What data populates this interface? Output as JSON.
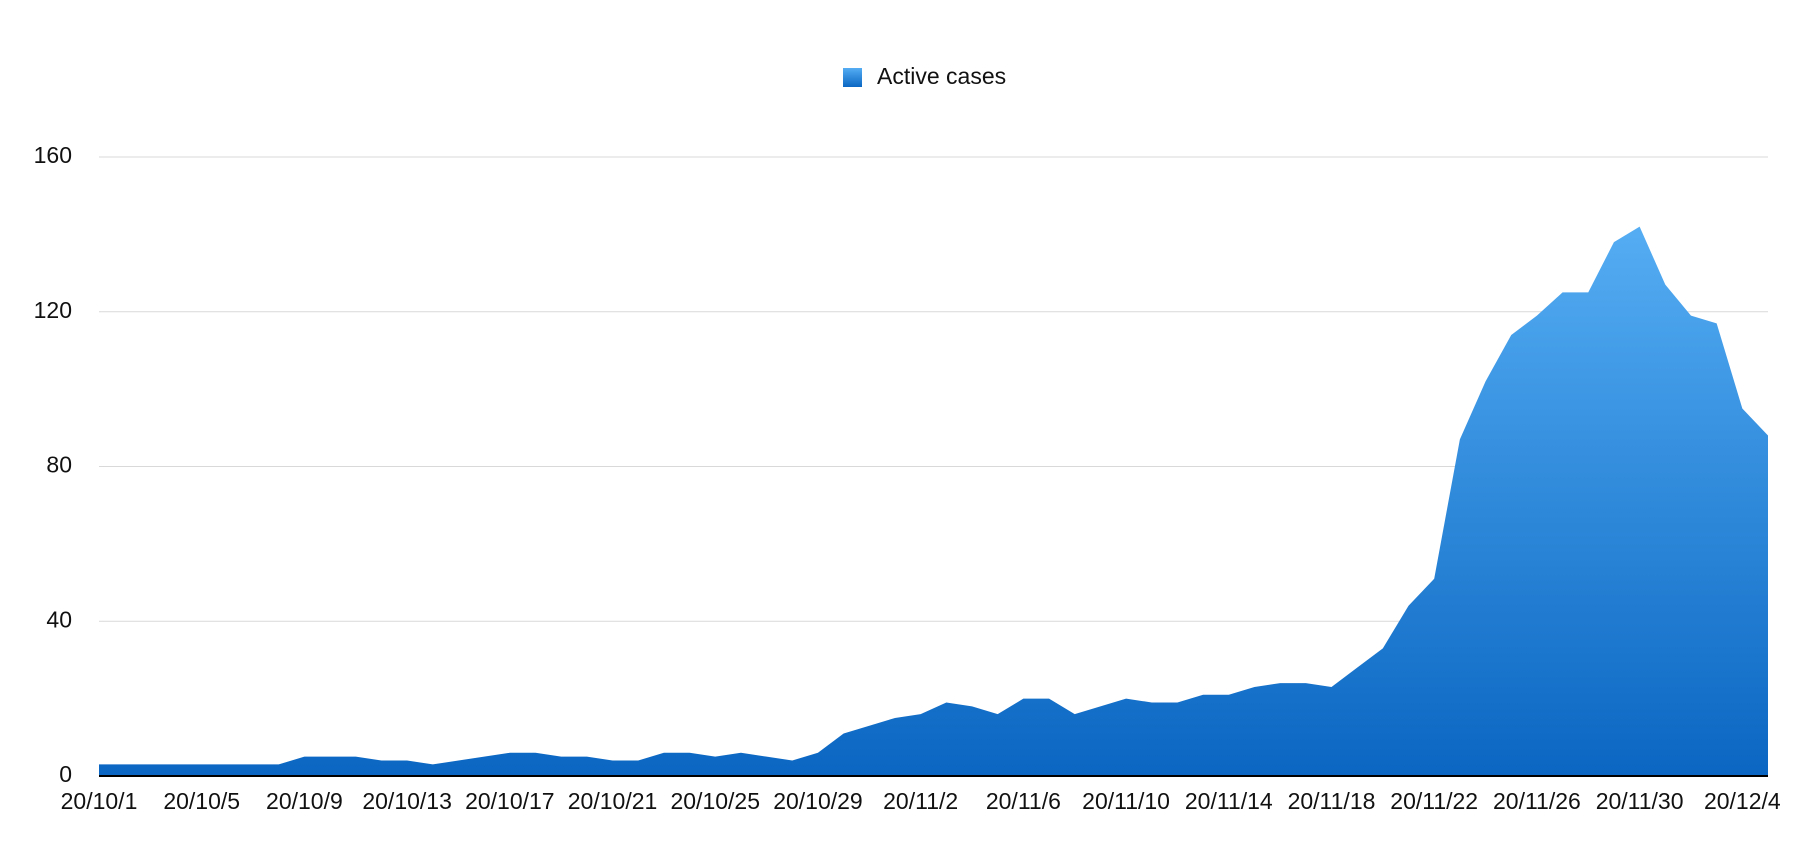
{
  "chart_data": {
    "type": "area",
    "categories": [
      "20/10/1",
      null,
      null,
      null,
      "20/10/5",
      null,
      null,
      null,
      "20/10/9",
      null,
      null,
      null,
      "20/10/13",
      null,
      null,
      null,
      "20/10/17",
      null,
      null,
      null,
      "20/10/21",
      null,
      null,
      null,
      "20/10/25",
      null,
      null,
      null,
      "20/10/29",
      null,
      null,
      null,
      "20/11/2",
      null,
      null,
      null,
      "20/11/6",
      null,
      null,
      null,
      "20/11/10",
      null,
      null,
      null,
      "20/11/14",
      null,
      null,
      null,
      "20/11/18",
      null,
      null,
      null,
      "20/11/22",
      null,
      null,
      null,
      "20/11/26",
      null,
      null,
      null,
      "20/11/30",
      null,
      null,
      null,
      "20/12/4",
      null
    ],
    "series": [
      {
        "name": "Active cases",
        "color": "#0a66c2",
        "values": [
          3,
          3,
          3,
          3,
          3,
          3,
          3,
          3,
          5,
          5,
          5,
          4,
          4,
          3,
          4,
          5,
          6,
          6,
          5,
          5,
          4,
          4,
          6,
          6,
          5,
          6,
          5,
          4,
          6,
          11,
          13,
          15,
          16,
          19,
          18,
          16,
          20,
          20,
          16,
          18,
          20,
          19,
          19,
          21,
          21,
          23,
          24,
          24,
          23,
          28,
          33,
          44,
          51,
          87,
          102,
          114,
          119,
          125,
          125,
          138,
          142,
          127,
          119,
          117,
          95,
          88
        ]
      }
    ],
    "ylim": [
      0,
      160
    ],
    "yticks": [
      0,
      40,
      80,
      120,
      160
    ],
    "grid": true,
    "legend": "top"
  }
}
